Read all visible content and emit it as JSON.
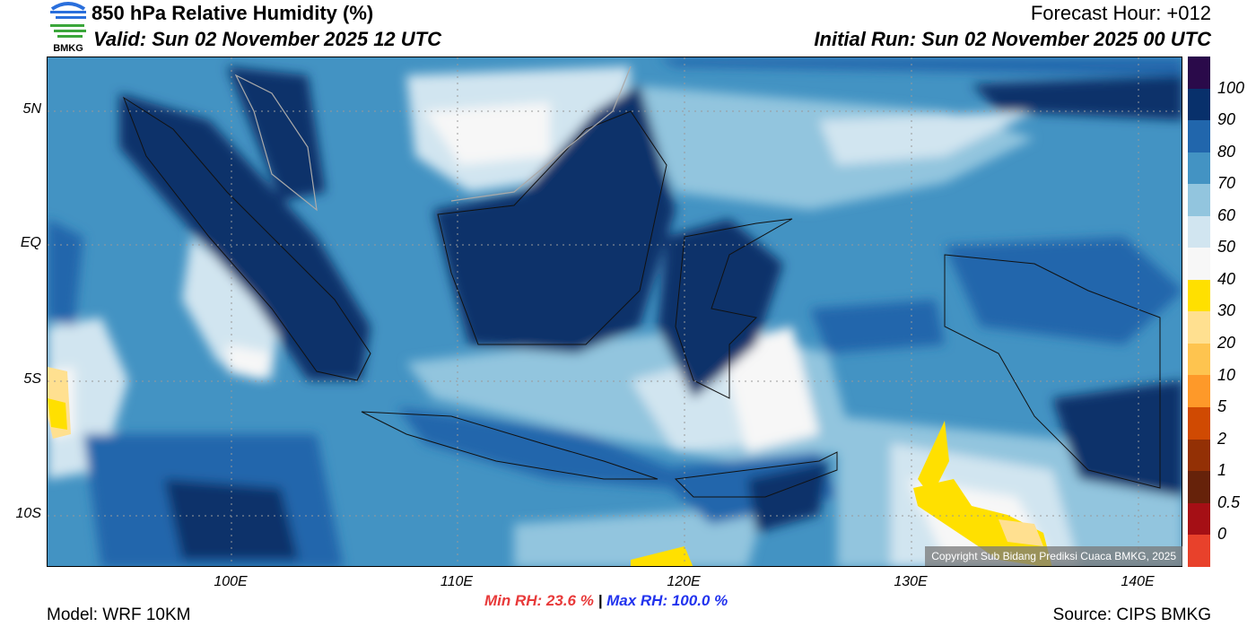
{
  "header": {
    "logo_text": "BMKG",
    "title": "850 hPa Relative Humidity (%)",
    "valid": "Valid: Sun 02 November 2025 12 UTC",
    "forecast_hour": "Forecast Hour: +012",
    "initial_run": "Initial Run: Sun 02 November 2025 00 UTC"
  },
  "axes": {
    "lat_labels": [
      "5N",
      "EQ",
      "5S",
      "10S"
    ],
    "lon_labels": [
      "100E",
      "110E",
      "120E",
      "130E",
      "140E"
    ]
  },
  "colorbar": {
    "colors": [
      "#2a0a4a",
      "#08306b",
      "#2166ac",
      "#4393c3",
      "#92c5de",
      "#d1e5f0",
      "#f7f7f7",
      "#ffe000",
      "#ffe090",
      "#fec44f",
      "#fe9929",
      "#d04a02",
      "#933005",
      "#66220a",
      "#a50f15",
      "#e8412b"
    ],
    "labels": [
      "100",
      "90",
      "80",
      "70",
      "60",
      "50",
      "40",
      "30",
      "20",
      "10",
      "5",
      "2",
      "1",
      "0.5",
      "0"
    ]
  },
  "stats": {
    "min": "Min RH:  23.6 %",
    "sep": "|",
    "max": "Max RH: 100.0 %",
    "min_color": "#e83a3a",
    "max_color": "#2233ee"
  },
  "footer": {
    "model": "Model: WRF 10KM",
    "source": "Source: CIPS BMKG",
    "copyright": "Copyright Sub Bidang Prediksi Cuaca BMKG, 2025"
  }
}
